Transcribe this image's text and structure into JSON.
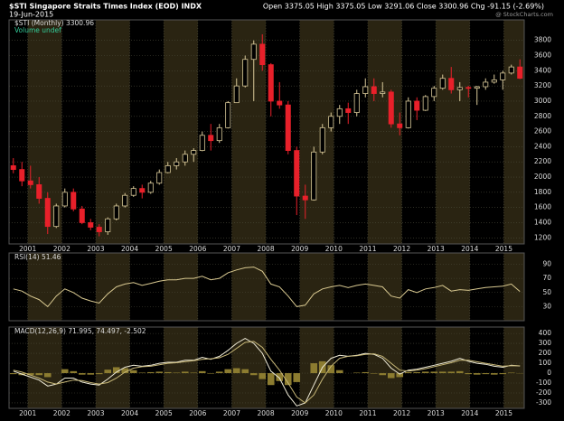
{
  "header": {
    "title": "$STI Singapore Straits Times Index (EOD) INDX",
    "date": "19-Jun-2015",
    "quote": "Open 3375.05  High 3375.05  Low 3291.06  Close 3300.96  Chg -91.15 (-2.69%)",
    "credit": "@ StockCharts.com"
  },
  "chart_data": [
    {
      "type": "candlestick",
      "title": "$STI (Monthly) 3300.96",
      "subtitle": "Volume undef",
      "up_color": "#d8c898",
      "down_color": "#e8202a",
      "xlim": [
        2000.45,
        2015.6
      ],
      "xticks": [
        2001,
        2002,
        2003,
        2004,
        2005,
        2006,
        2007,
        2008,
        2009,
        2010,
        2011,
        2012,
        2013,
        2014,
        2015
      ],
      "ylim": [
        1120,
        4070
      ],
      "yticks": [
        1200,
        1400,
        1600,
        1800,
        2000,
        2200,
        2400,
        2600,
        2800,
        3000,
        3200,
        3400,
        3600,
        3800
      ],
      "grid": true,
      "open": [
        2150,
        2100,
        1950,
        1900,
        1720,
        1350,
        1620,
        1800,
        1580,
        1400,
        1340,
        1280,
        1450,
        1620,
        1760,
        1850,
        1800,
        1920,
        2060,
        2150,
        2200,
        2300,
        2350,
        2550,
        2480,
        2650,
        2980,
        3200,
        3550,
        3750,
        3480,
        3000,
        2950,
        2350,
        1750,
        1700,
        2330,
        2650,
        2800,
        2900,
        2850,
        3100,
        3190,
        3100,
        3120,
        2700,
        2650,
        3000,
        2880,
        3060,
        3170,
        3300,
        3150,
        3180,
        3170,
        3190,
        3250,
        3280,
        3370,
        3450
      ],
      "high": [
        2250,
        2200,
        2150,
        2000,
        1800,
        1650,
        1850,
        1850,
        1620,
        1450,
        1380,
        1470,
        1650,
        1790,
        1880,
        1900,
        1950,
        2100,
        2200,
        2250,
        2350,
        2380,
        2600,
        2700,
        2700,
        3000,
        3300,
        3600,
        3800,
        3880,
        3500,
        3250,
        3000,
        2400,
        1900,
        2400,
        2700,
        2850,
        2950,
        2980,
        3150,
        3300,
        3300,
        3250,
        3150,
        2850,
        3050,
        3050,
        3080,
        3200,
        3350,
        3450,
        3250,
        3200,
        3200,
        3300,
        3350,
        3400,
        3480,
        3550
      ],
      "low": [
        2050,
        1880,
        1850,
        1650,
        1250,
        1330,
        1600,
        1550,
        1380,
        1300,
        1220,
        1240,
        1430,
        1600,
        1740,
        1720,
        1780,
        1900,
        2050,
        2100,
        2150,
        2200,
        2340,
        2350,
        2450,
        2640,
        2980,
        3180,
        3000,
        3400,
        2800,
        2900,
        2300,
        1500,
        1450,
        1690,
        2300,
        2600,
        2700,
        2700,
        2800,
        3050,
        3000,
        3050,
        2650,
        2550,
        2640,
        2750,
        2870,
        3000,
        3150,
        3100,
        3000,
        3050,
        2950,
        3150,
        3230,
        3150,
        3350,
        3290
      ],
      "close": [
        2100,
        1950,
        1900,
        1720,
        1350,
        1620,
        1800,
        1580,
        1400,
        1340,
        1280,
        1450,
        1620,
        1760,
        1850,
        1800,
        1920,
        2060,
        2150,
        2200,
        2300,
        2350,
        2550,
        2480,
        2650,
        2980,
        3200,
        3550,
        3750,
        3480,
        3000,
        2950,
        2350,
        1750,
        1700,
        2330,
        2650,
        2800,
        2900,
        2850,
        3100,
        3190,
        3100,
        3120,
        2700,
        2650,
        3000,
        2880,
        3060,
        3170,
        3300,
        3150,
        3180,
        3170,
        3190,
        3250,
        3280,
        3370,
        3450,
        3300.96
      ]
    },
    {
      "type": "line",
      "title": "RSI(14) 51.46",
      "xlim": [
        2000.45,
        2015.6
      ],
      "xticks": [
        2001,
        2002,
        2003,
        2004,
        2005,
        2006,
        2007,
        2008,
        2009,
        2010,
        2011,
        2012,
        2013,
        2014,
        2015
      ],
      "ylim": [
        10,
        106
      ],
      "yticks": [
        30,
        50,
        70,
        90
      ],
      "grid": true,
      "series": [
        {
          "color": "#d8c890",
          "values": [
            55,
            52,
            45,
            40,
            30,
            45,
            55,
            50,
            42,
            38,
            35,
            48,
            58,
            62,
            64,
            60,
            63,
            66,
            68,
            68,
            70,
            70,
            73,
            68,
            70,
            78,
            82,
            85,
            86,
            80,
            62,
            58,
            45,
            30,
            32,
            48,
            55,
            58,
            60,
            57,
            60,
            62,
            60,
            58,
            45,
            42,
            54,
            50,
            55,
            57,
            60,
            52,
            54,
            53,
            55,
            57,
            58,
            59,
            62,
            51.46
          ]
        }
      ]
    },
    {
      "type": "line",
      "title": "MACD(12,26,9) 71.995, 74.497, -2.502",
      "xlim": [
        2000.45,
        2015.6
      ],
      "xticks": [
        2001,
        2002,
        2003,
        2004,
        2005,
        2006,
        2007,
        2008,
        2009,
        2010,
        2011,
        2012,
        2013,
        2014,
        2015
      ],
      "ylim": [
        -355,
        465
      ],
      "yticks": [
        -300,
        -200,
        -100,
        0,
        100,
        200,
        300,
        400
      ],
      "grid": true,
      "series": [
        {
          "type": "bar",
          "color": "#8c7c30",
          "values": [
            -10,
            -20,
            -20,
            -20,
            -40,
            0,
            40,
            20,
            -15,
            -15,
            -10,
            35,
            60,
            50,
            30,
            5,
            10,
            15,
            10,
            5,
            15,
            5,
            20,
            -5,
            15,
            40,
            50,
            40,
            -20,
            -60,
            -120,
            -80,
            -120,
            -90,
            0,
            100,
            120,
            80,
            30,
            0,
            5,
            10,
            -5,
            -20,
            -50,
            -40,
            10,
            10,
            15,
            15,
            15,
            15,
            20,
            -10,
            -15,
            -10,
            -15,
            -10,
            5,
            -2.502
          ]
        },
        {
          "color": "#f0ecd8",
          "values": [
            20,
            -10,
            -40,
            -70,
            -130,
            -110,
            -50,
            -50,
            -90,
            -110,
            -120,
            -60,
            10,
            60,
            80,
            70,
            80,
            100,
            110,
            110,
            130,
            130,
            160,
            140,
            170,
            230,
            300,
            350,
            300,
            200,
            20,
            -50,
            -220,
            -330,
            -300,
            -120,
            60,
            150,
            180,
            170,
            180,
            200,
            190,
            150,
            50,
            -10,
            30,
            40,
            60,
            80,
            100,
            120,
            150,
            120,
            100,
            90,
            70,
            60,
            80,
            71.995
          ]
        },
        {
          "color": "#c8b878",
          "values": [
            30,
            10,
            -20,
            -50,
            -90,
            -110,
            -90,
            -70,
            -75,
            -95,
            -110,
            -95,
            -50,
            10,
            50,
            65,
            70,
            85,
            100,
            105,
            115,
            125,
            140,
            145,
            155,
            190,
            250,
            310,
            320,
            260,
            140,
            30,
            -100,
            -240,
            -300,
            -220,
            -60,
            70,
            150,
            170,
            175,
            190,
            195,
            170,
            100,
            30,
            20,
            30,
            45,
            65,
            85,
            105,
            130,
            130,
            115,
            100,
            85,
            70,
            75,
            74.497
          ]
        }
      ]
    }
  ]
}
